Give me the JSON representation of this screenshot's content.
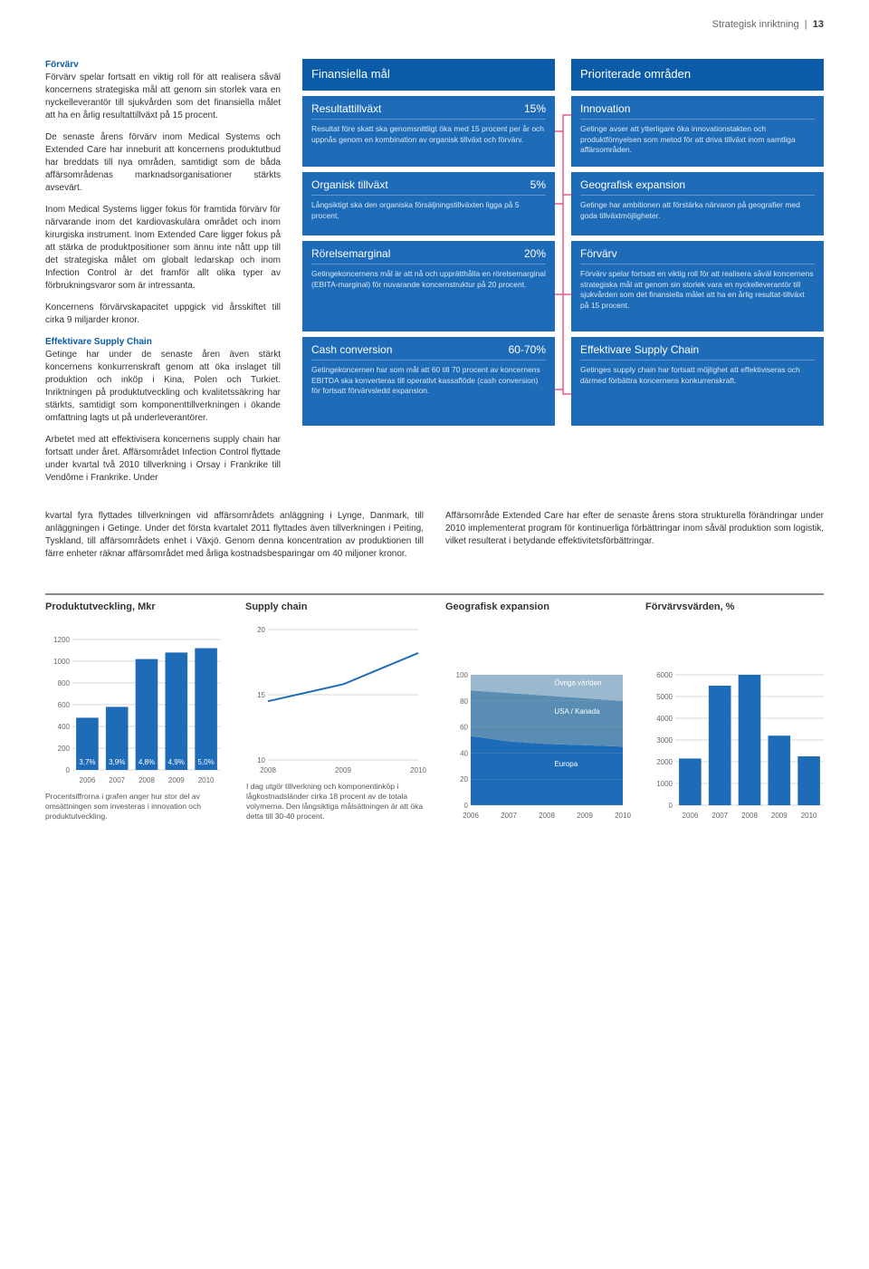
{
  "header": {
    "section_label": "Strategisk inriktning",
    "page_number": "13"
  },
  "body": {
    "h1_title": "Förvärv",
    "p1": "Förvärv spelar fortsatt en viktig roll för att realisera såväl koncernens strategiska mål att genom sin storlek vara en nyckelleverantör till sjukvården som det finansiella målet att ha en årlig resultattillväxt på 15 procent.",
    "p2": "De senaste årens förvärv inom Medical Systems och Extended Care har inneburit att koncernens produktutbud har breddats till nya områden, samtidigt som de båda affärsområdenas marknadsorganisationer stärkts avsevärt.",
    "p3": "Inom Medical Systems ligger fokus för framtida förvärv för närvarande inom det kardiovaskulära området och inom kirurgiska instrument. Inom Extended Care ligger fokus på att stärka de produktpositioner som ännu inte nått upp till det strategiska målet om globalt ledarskap och inom Infection Control är det framför allt olika typer av förbrukningsvaror som är intressanta.",
    "p4": "Koncernens förvärvskapacitet uppgick vid årsskiftet till cirka 9 miljarder kronor.",
    "h2_title": "Effektivare Supply Chain",
    "p5": "Getinge har under de senaste åren även stärkt koncernens konkurrenskraft genom att öka inslaget till produktion och inköp i Kina, Polen och Turkiet. Inriktningen på produktutveckling och kvalitetssäkring har stärkts, samtidigt som komponenttillverkningen i ökande omfattning lagts ut på underleverantörer.",
    "p6": "Arbetet med att effektivisera koncernens supply chain har fortsatt under året. Affärsområdet Infection Control flyttade under kvartal två 2010 tillverkning i Orsay i Frankrike till Vendôme i Frankrike. Under"
  },
  "mid": {
    "left": "kvartal fyra flyttades tillverkningen vid affärsområdets anläggning i Lynge, Danmark, till anläggningen i Getinge. Under det första kvartalet 2011 flyttades även tillverkningen i Peiting, Tyskland, till affärsområdets enhet i Växjö. Genom denna koncentration av produktionen till färre enheter räknar affärsområdet med årliga kostnadsbesparingar om 40 miljoner kronor.",
    "right": "Affärsområde Extended Care har efter de senaste årens stora strukturella förändringar under 2010 implementerat program för kontinuerliga förbättringar inom såväl produktion som logistik, vilket resulterat i betydande effektivitetsförbättringar."
  },
  "goals": {
    "left_header": "Finansiella mål",
    "right_header": "Prioriterade områden",
    "left": [
      {
        "title": "Resultattillväxt",
        "value": "15%",
        "body": "Resultat före skatt ska genomsnittligt öka med 15 procent per år och uppnås genom en kombination av organisk tillväxt och förvärv."
      },
      {
        "title": "Organisk tillväxt",
        "value": "5%",
        "body": "Långsiktigt ska den organiska försäljningstillväxten ligga på 5 procent."
      },
      {
        "title": "Rörelsemarginal",
        "value": "20%",
        "body": "Getingekoncernens mål är att nå och upprätthålla en rörelsemarginal (EBITA-marginal) för nuvarande koncernstruktur på 20 procent."
      },
      {
        "title": "Cash conversion",
        "value": "60-70%",
        "body": "Getingekoncernen har som mål att 60 till 70 procent av koncernens EBITDA ska konverteras till operativt kassaflöde (cash conversion) för fortsatt förvärvsledd expansion."
      }
    ],
    "right": [
      {
        "title": "Innovation",
        "body": "Getinge avser att ytterligare öka innovationstakten och produktförnyelsen som metod för att driva tillväxt inom samtliga affärsområden."
      },
      {
        "title": "Geografisk expansion",
        "body": "Getinge har ambitionen att förstärka närvaron på geografier med goda tillväxtmöjligheter."
      },
      {
        "title": "Förvärv",
        "body": "Förvärv spelar fortsatt en viktig roll för att realisera såväl koncernens strategiska mål att genom sin storlek vara en nyckelleverantör till sjukvården som det finansiella målet att ha en årlig resultat-tillväxt på 15 procent."
      },
      {
        "title": "Effektivare Supply Chain",
        "body": "Getinges supply chain har fortsatt möjlighet att effektiviseras och därmed förbättra koncernens konkurrenskraft."
      }
    ]
  },
  "charts": {
    "produktutveckling": {
      "title": "Produktutveckling, Mkr",
      "type": "bar",
      "categories": [
        "2006",
        "2007",
        "2008",
        "2009",
        "2010"
      ],
      "values": [
        480,
        580,
        1020,
        1080,
        1120
      ],
      "labels": [
        "3,7%",
        "3,9%",
        "4,8%",
        "4,9%",
        "5,0%"
      ],
      "ylim": [
        0,
        1200
      ],
      "ytick_step": 200,
      "bar_color": "#1e6bb8",
      "grid_color": "#b0b0b0",
      "text_color": "#ffffff",
      "font_size": 8,
      "caption": "Procentsiffrorna i grafen anger hur stor del av omsättningen som investeras i innovation och produktutveckling."
    },
    "supply_chain": {
      "title": "Supply chain",
      "type": "line",
      "categories": [
        "2008",
        "2009",
        "2010"
      ],
      "values": [
        14.5,
        15.8,
        18.2
      ],
      "ylim": [
        10,
        20
      ],
      "ytick_step": 5,
      "line_color": "#1e6bb8",
      "grid_color": "#b0b0b0",
      "caption": "I dag utgör tillverkning och komponentinköp i lågkostnadsländer cirka 18 procent av de totala volymerna. Den långsiktiga målsättningen är att öka detta till 30-40 procent."
    },
    "geografisk": {
      "title": "Geografisk expansion",
      "type": "area",
      "categories": [
        "2006",
        "2007",
        "2008",
        "2009",
        "2010"
      ],
      "series": [
        {
          "name": "Övriga världen",
          "values": [
            12,
            14,
            16,
            18,
            20
          ],
          "color": "#9ab8ce"
        },
        {
          "name": "USA / Kanada",
          "values": [
            35,
            37,
            37,
            36,
            35
          ],
          "color": "#5a8db3"
        },
        {
          "name": "Europa",
          "values": [
            53,
            49,
            47,
            46,
            45
          ],
          "color": "#1e6bb8"
        }
      ],
      "ylim": [
        0,
        100
      ],
      "ytick_step": 20,
      "label_color": "#ffffff",
      "grid_color": "#b0b0b0"
    },
    "forvarvsvarden": {
      "title": "Förvärvsvärden, %",
      "type": "bar",
      "categories": [
        "2006",
        "2007",
        "2008",
        "2009",
        "2010"
      ],
      "values": [
        2150,
        5500,
        6050,
        3200,
        2250
      ],
      "ylim": [
        0,
        6000
      ],
      "ytick_step": 1000,
      "bar_color": "#1e6bb8",
      "grid_color": "#b0b0b0"
    }
  },
  "colors": {
    "header_blue": "#0a5ca8",
    "box_blue": "#1e6bb8",
    "connector_pink": "#e85a8a"
  }
}
